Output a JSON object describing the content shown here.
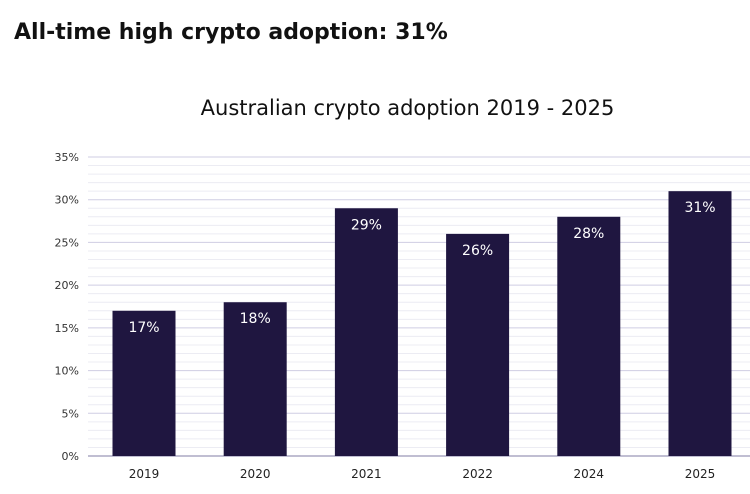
{
  "headline": "All-time high crypto adoption: 31%",
  "colors": {
    "bar": "#1f1640",
    "gridline": "#cfcde3",
    "axis": "#9b98b8"
  },
  "chart_data": {
    "type": "bar",
    "title": "Australian crypto adoption 2019 - 2025",
    "xlabel": "",
    "ylabel": "",
    "categories": [
      "2019",
      "2020",
      "2021",
      "2022",
      "2024",
      "2025"
    ],
    "values": [
      17,
      18,
      29,
      26,
      28,
      31
    ],
    "value_labels": [
      "17%",
      "18%",
      "29%",
      "26%",
      "28%",
      "31%"
    ],
    "ylim": [
      0,
      35
    ],
    "yticks": [
      0,
      5,
      10,
      15,
      20,
      25,
      30,
      35
    ],
    "ytick_labels": [
      "0%",
      "5%",
      "10%",
      "15%",
      "20%",
      "25%",
      "30%",
      "35%"
    ],
    "grid": true,
    "legend": "none"
  }
}
